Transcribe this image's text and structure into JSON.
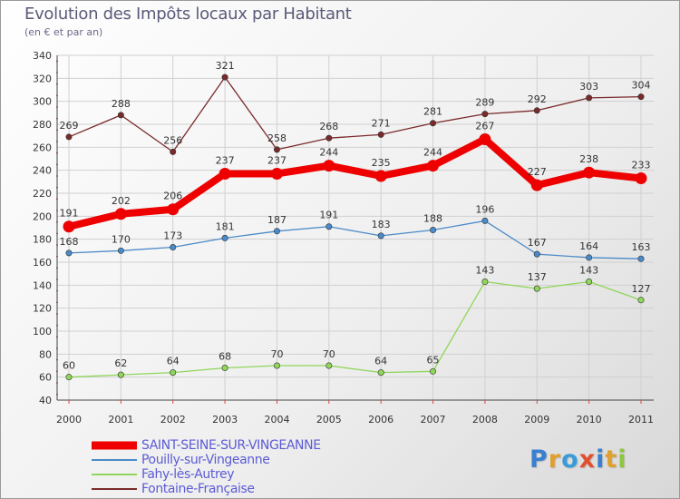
{
  "title": "Evolution des Impôts locaux par Habitant",
  "subtitle": "(en € et par an)",
  "logo": {
    "letters": [
      {
        "ch": "P",
        "color": "#3a7fd0"
      },
      {
        "ch": "r",
        "color": "#e0a030"
      },
      {
        "ch": "o",
        "color": "#3a9bd8"
      },
      {
        "ch": "x",
        "color": "#e05030"
      },
      {
        "ch": "i",
        "color": "#3a7fd0"
      },
      {
        "ch": "t",
        "color": "#e0a030"
      },
      {
        "ch": "i",
        "color": "#8dc63f"
      }
    ]
  },
  "chart_data": {
    "type": "line",
    "title": "Evolution des Impôts locaux par Habitant",
    "subtitle": "(en € et par an)",
    "x": [
      "2000",
      "2001",
      "2002",
      "2003",
      "2004",
      "2005",
      "2006",
      "2007",
      "2008",
      "2009",
      "2010",
      "2011"
    ],
    "ylim": [
      40,
      340
    ],
    "yticks": [
      40,
      60,
      80,
      100,
      120,
      140,
      160,
      180,
      200,
      220,
      240,
      260,
      280,
      300,
      320,
      340
    ],
    "grid": true,
    "legend_position": "bottom-left",
    "series": [
      {
        "name": "SAINT-SEINE-SUR-VINGEANNE",
        "color": "#ee0000",
        "emphasis": true,
        "values": [
          191,
          202,
          206,
          237,
          237,
          244,
          235,
          244,
          267,
          227,
          238,
          233
        ]
      },
      {
        "name": "Pouilly-sur-Vingeanne",
        "color": "#4a8ac8",
        "values": [
          168,
          170,
          173,
          181,
          187,
          191,
          183,
          188,
          196,
          167,
          164,
          163
        ]
      },
      {
        "name": "Fahy-lès-Autrey",
        "color": "#8fd65a",
        "values": [
          60,
          62,
          64,
          68,
          70,
          70,
          64,
          65,
          143,
          137,
          143,
          127
        ]
      },
      {
        "name": "Fontaine-Française",
        "color": "#7a2a2a",
        "values": [
          269,
          288,
          256,
          321,
          258,
          268,
          271,
          281,
          289,
          292,
          303,
          304
        ]
      }
    ]
  }
}
